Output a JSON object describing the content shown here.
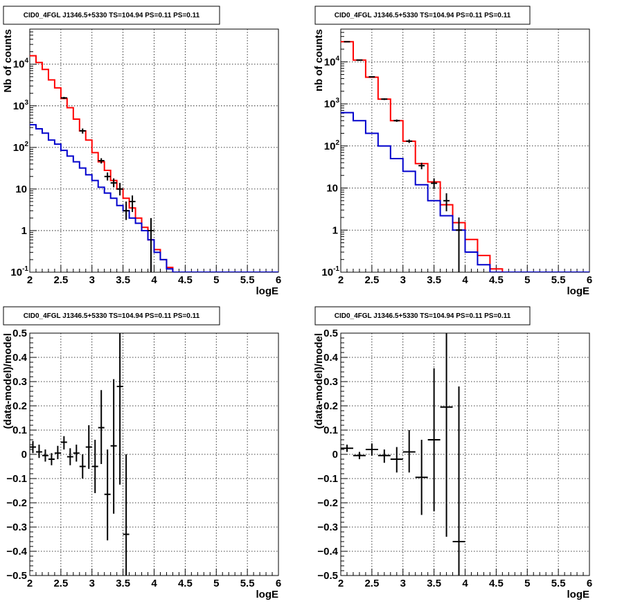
{
  "chart_data": [
    {
      "type": "line",
      "title": "CID0_4FGL J1346.5+5330 TS=104.94 PS=0.11 PS=0.11",
      "xlabel": "logE",
      "ylabel": "Nb of counts",
      "xlim": [
        2,
        6
      ],
      "ylim": [
        0.1,
        70000
      ],
      "log_y": true,
      "grid": true,
      "x_ticks": [
        "2",
        "2.5",
        "3",
        "3.5",
        "4",
        "4.5",
        "5",
        "5.5",
        "6"
      ],
      "y_ticks": [
        "10^-1",
        "1",
        "10",
        "10^2",
        "10^3",
        "10^4"
      ],
      "bin_edges": [
        2.0,
        2.1,
        2.2,
        2.3,
        2.4,
        2.5,
        2.6,
        2.7,
        2.8,
        2.9,
        3.0,
        3.1,
        3.2,
        3.3,
        3.4,
        3.5,
        3.6,
        3.7,
        3.8,
        3.9,
        4.0,
        4.1,
        4.2,
        4.3,
        4.4,
        4.5,
        4.6,
        4.7,
        4.8,
        4.9,
        5.0,
        5.1,
        5.2,
        5.3,
        5.4,
        5.5,
        5.6,
        5.7,
        5.8,
        5.9,
        6.0
      ],
      "series": [
        {
          "color": "#ff0000",
          "values": [
            16000,
            11000,
            7500,
            4200,
            2700,
            1500,
            900,
            480,
            250,
            150,
            75,
            45,
            28,
            16,
            10,
            6,
            3.5,
            2,
            1.2,
            0.6,
            0.35,
            0.2,
            0.13,
            0.1,
            0.1,
            0.1,
            0.1,
            0.1,
            0.1,
            0.1,
            0.1,
            0.1,
            0.1,
            0.1,
            0.1,
            0.1,
            0.1,
            0.1,
            0.1,
            0.1
          ]
        },
        {
          "color": "#0000cc",
          "values": [
            350,
            280,
            220,
            150,
            120,
            85,
            62,
            45,
            32,
            22,
            16,
            11,
            8,
            6,
            4,
            3,
            2,
            1.5,
            1,
            0.6,
            0.3,
            0.2,
            0.12,
            0.1,
            0.1,
            0.1,
            0.1,
            0.1,
            0.1,
            0.1,
            0.1,
            0.1,
            0.1,
            0.1,
            0.1,
            0.1,
            0.1,
            0.1,
            0.1,
            0.1
          ]
        }
      ],
      "points": [
        {
          "x": 2.55,
          "y": 1550,
          "lo": 1460,
          "hi": 1640
        },
        {
          "x": 2.85,
          "y": 250,
          "lo": 215,
          "hi": 285
        },
        {
          "x": 3.15,
          "y": 48,
          "lo": 41,
          "hi": 55
        },
        {
          "x": 3.25,
          "y": 20,
          "lo": 16,
          "hi": 25
        },
        {
          "x": 3.35,
          "y": 14,
          "lo": 11,
          "hi": 18
        },
        {
          "x": 3.45,
          "y": 10,
          "lo": 7,
          "hi": 14
        },
        {
          "x": 3.55,
          "y": 3,
          "lo": 1.8,
          "hi": 5
        },
        {
          "x": 3.65,
          "y": 5,
          "lo": 2.8,
          "hi": 7
        },
        {
          "x": 3.95,
          "y": 1,
          "lo": 0.1,
          "hi": 2
        }
      ]
    },
    {
      "type": "line",
      "title": "CID0_4FGL J1346.5+5330 TS=104.94 PS=0.11 PS=0.11",
      "xlabel": "logE",
      "ylabel": "nb of counts",
      "xlim": [
        2,
        6
      ],
      "ylim": [
        0.1,
        60000
      ],
      "log_y": true,
      "grid": true,
      "x_ticks": [
        "2",
        "2.5",
        "3",
        "3.5",
        "4",
        "4.5",
        "5",
        "5.5",
        "6"
      ],
      "y_ticks": [
        "10^-1",
        "1",
        "10",
        "10^2",
        "10^3",
        "10^4"
      ],
      "bin_edges": [
        2.0,
        2.2,
        2.4,
        2.6,
        2.8,
        3.0,
        3.2,
        3.4,
        3.6,
        3.8,
        4.0,
        4.2,
        4.4,
        4.6,
        4.8,
        5.0,
        5.2,
        5.4,
        5.6,
        5.8,
        6.0
      ],
      "series": [
        {
          "color": "#ff0000",
          "values": [
            30000,
            11000,
            4300,
            1300,
            400,
            130,
            38,
            14,
            4,
            1.5,
            0.6,
            0.25,
            0.12,
            0.1,
            0.1,
            0.1,
            0.1,
            0.1,
            0.1,
            0.1
          ]
        },
        {
          "color": "#0000cc",
          "values": [
            620,
            400,
            200,
            100,
            50,
            25,
            12,
            5,
            2.2,
            1,
            0.3,
            0.15,
            0.1,
            0.1,
            0.1,
            0.1,
            0.1,
            0.1,
            0.1,
            0.1
          ]
        }
      ],
      "points": [
        {
          "x": 2.1,
          "y": 30000,
          "lo": 29500,
          "hi": 30500
        },
        {
          "x": 2.3,
          "y": 11000,
          "lo": 10800,
          "hi": 11200
        },
        {
          "x": 2.5,
          "y": 4400,
          "lo": 4280,
          "hi": 4520
        },
        {
          "x": 2.7,
          "y": 1300,
          "lo": 1240,
          "hi": 1360
        },
        {
          "x": 2.9,
          "y": 400,
          "lo": 375,
          "hi": 425
        },
        {
          "x": 3.1,
          "y": 130,
          "lo": 118,
          "hi": 142
        },
        {
          "x": 3.3,
          "y": 34,
          "lo": 28,
          "hi": 40
        },
        {
          "x": 3.5,
          "y": 13,
          "lo": 9.5,
          "hi": 17
        },
        {
          "x": 3.7,
          "y": 5,
          "lo": 2.8,
          "hi": 7.5
        },
        {
          "x": 3.9,
          "y": 1,
          "lo": 0.1,
          "hi": 2
        }
      ]
    },
    {
      "type": "scatter",
      "title": "CID0_4FGL J1346.5+5330 TS=104.94 PS=0.11 PS=0.11",
      "xlabel": "logE",
      "ylabel": "(data-model)/model",
      "xlim": [
        2,
        6
      ],
      "ylim": [
        -0.5,
        0.5
      ],
      "log_y": false,
      "grid": true,
      "x_ticks": [
        "2",
        "2.5",
        "3",
        "3.5",
        "4",
        "4.5",
        "5",
        "5.5",
        "6"
      ],
      "y_ticks": [
        "-0.5",
        "-0.4",
        "-0.3",
        "-0.2",
        "-0.1",
        "0",
        "0.1",
        "0.2",
        "0.3",
        "0.4",
        "0.5"
      ],
      "xerr": 0.05,
      "points": [
        {
          "x": 2.05,
          "y": 0.03,
          "lo": 0.005,
          "hi": 0.055
        },
        {
          "x": 2.15,
          "y": 0.01,
          "lo": -0.015,
          "hi": 0.04
        },
        {
          "x": 2.25,
          "y": -0.005,
          "lo": -0.03,
          "hi": 0.02
        },
        {
          "x": 2.35,
          "y": -0.02,
          "lo": -0.045,
          "hi": 0.005
        },
        {
          "x": 2.45,
          "y": 0.005,
          "lo": -0.02,
          "hi": 0.035
        },
        {
          "x": 2.55,
          "y": 0.05,
          "lo": 0.02,
          "hi": 0.075
        },
        {
          "x": 2.65,
          "y": -0.01,
          "lo": -0.045,
          "hi": 0.025
        },
        {
          "x": 2.75,
          "y": 0.005,
          "lo": -0.03,
          "hi": 0.04
        },
        {
          "x": 2.85,
          "y": -0.05,
          "lo": -0.1,
          "hi": 0.0
        },
        {
          "x": 2.95,
          "y": 0.03,
          "lo": -0.06,
          "hi": 0.12
        },
        {
          "x": 3.05,
          "y": -0.05,
          "lo": -0.16,
          "hi": 0.06
        },
        {
          "x": 3.15,
          "y": 0.11,
          "lo": -0.04,
          "hi": 0.265
        },
        {
          "x": 3.25,
          "y": -0.165,
          "lo": -0.355,
          "hi": 0.02
        },
        {
          "x": 3.35,
          "y": 0.035,
          "lo": -0.245,
          "hi": 0.31
        },
        {
          "x": 3.45,
          "y": 0.28,
          "lo": -0.125,
          "hi": 0.5
        },
        {
          "x": 3.55,
          "y": -0.33,
          "lo": -0.5,
          "hi": 0.0
        }
      ]
    },
    {
      "type": "scatter",
      "title": "CID0_4FGL J1346.5+5330 TS=104.94 PS=0.11 PS=0.11",
      "xlabel": "logE",
      "ylabel": "(data-model)/model",
      "xlim": [
        2,
        6
      ],
      "ylim": [
        -0.5,
        0.5
      ],
      "log_y": false,
      "grid": true,
      "x_ticks": [
        "2",
        "2.5",
        "3",
        "3.5",
        "4",
        "4.5",
        "5",
        "5.5",
        "6"
      ],
      "y_ticks": [
        "-0.5",
        "-0.4",
        "-0.3",
        "-0.2",
        "-0.1",
        "0",
        "0.1",
        "0.2",
        "0.3",
        "0.4",
        "0.5"
      ],
      "xerr": 0.1,
      "points": [
        {
          "x": 2.1,
          "y": 0.025,
          "lo": 0.01,
          "hi": 0.04
        },
        {
          "x": 2.3,
          "y": -0.005,
          "lo": -0.02,
          "hi": 0.01
        },
        {
          "x": 2.5,
          "y": 0.02,
          "lo": -0.005,
          "hi": 0.045
        },
        {
          "x": 2.7,
          "y": -0.005,
          "lo": -0.035,
          "hi": 0.02
        },
        {
          "x": 2.9,
          "y": -0.02,
          "lo": -0.075,
          "hi": 0.03
        },
        {
          "x": 3.1,
          "y": 0.01,
          "lo": -0.075,
          "hi": 0.1
        },
        {
          "x": 3.3,
          "y": -0.095,
          "lo": -0.25,
          "hi": 0.06
        },
        {
          "x": 3.5,
          "y": 0.06,
          "lo": -0.235,
          "hi": 0.355
        },
        {
          "x": 3.7,
          "y": 0.195,
          "lo": -0.34,
          "hi": 0.5
        },
        {
          "x": 3.9,
          "y": -0.36,
          "lo": -0.5,
          "hi": 0.28
        }
      ]
    }
  ]
}
